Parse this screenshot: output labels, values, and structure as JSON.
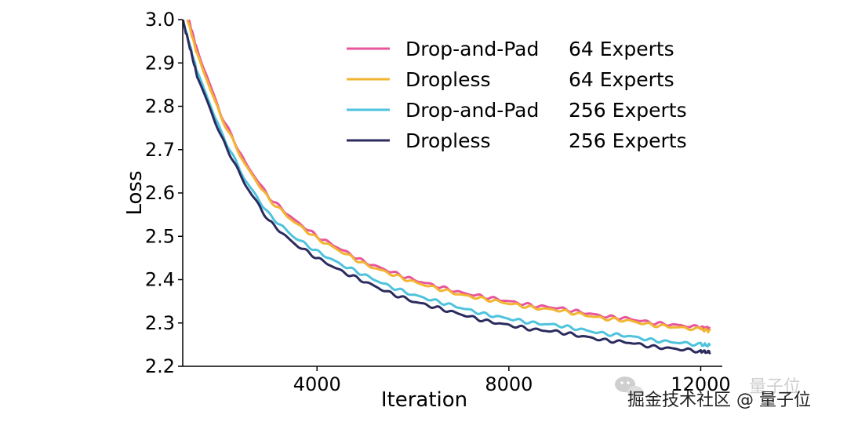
{
  "chart_data": {
    "type": "line",
    "title": "",
    "xlabel": "Iteration",
    "ylabel": "Loss",
    "xlim": [
      1200,
      12450
    ],
    "ylim": [
      2.2,
      3.0
    ],
    "xticks": [
      4000,
      8000,
      12000
    ],
    "xtick_labels": [
      "4000",
      "8000",
      "12000"
    ],
    "yticks": [
      2.2,
      2.3,
      2.4,
      2.5,
      2.6,
      2.7,
      2.8,
      2.9,
      3.0
    ],
    "ytick_labels": [
      "2.2",
      "2.3",
      "2.4",
      "2.5",
      "2.6",
      "2.7",
      "2.8",
      "2.9",
      "3.0"
    ],
    "grid": false,
    "legend_position": "top-right",
    "x": [
      1200,
      1500,
      2000,
      2500,
      3000,
      3500,
      4000,
      4500,
      5000,
      5500,
      6000,
      6500,
      7000,
      7500,
      8000,
      8500,
      9000,
      9500,
      10000,
      10500,
      11000,
      11500,
      12000,
      12200
    ],
    "series": [
      {
        "name": "Drop-and-Pad",
        "experts": "64 Experts",
        "color": "#e8559b",
        "values": [
          3.05,
          2.93,
          2.78,
          2.67,
          2.59,
          2.54,
          2.5,
          2.47,
          2.44,
          2.42,
          2.4,
          2.385,
          2.37,
          2.36,
          2.35,
          2.34,
          2.335,
          2.325,
          2.315,
          2.31,
          2.3,
          2.295,
          2.29,
          2.288
        ]
      },
      {
        "name": "Dropless",
        "experts": "64 Experts",
        "color": "#f2b531",
        "values": [
          3.04,
          2.92,
          2.775,
          2.665,
          2.585,
          2.535,
          2.495,
          2.465,
          2.435,
          2.415,
          2.395,
          2.38,
          2.365,
          2.355,
          2.345,
          2.335,
          2.33,
          2.32,
          2.31,
          2.305,
          2.295,
          2.29,
          2.285,
          2.282
        ]
      },
      {
        "name": "Drop-and-Pad",
        "experts": "256 Experts",
        "color": "#4fc3dd",
        "values": [
          3.0,
          2.88,
          2.74,
          2.63,
          2.55,
          2.5,
          2.465,
          2.435,
          2.41,
          2.385,
          2.365,
          2.35,
          2.335,
          2.32,
          2.31,
          2.3,
          2.295,
          2.285,
          2.275,
          2.27,
          2.26,
          2.255,
          2.25,
          2.248
        ]
      },
      {
        "name": "Dropless",
        "experts": "256 Experts",
        "color": "#2b2b5e",
        "values": [
          3.0,
          2.87,
          2.73,
          2.62,
          2.535,
          2.485,
          2.45,
          2.42,
          2.395,
          2.37,
          2.35,
          2.335,
          2.32,
          2.305,
          2.295,
          2.285,
          2.28,
          2.27,
          2.26,
          2.255,
          2.245,
          2.24,
          2.235,
          2.232
        ]
      }
    ]
  },
  "watermark": {
    "line1": "量子位",
    "line2": "掘金技术社区 @ 量子位"
  }
}
